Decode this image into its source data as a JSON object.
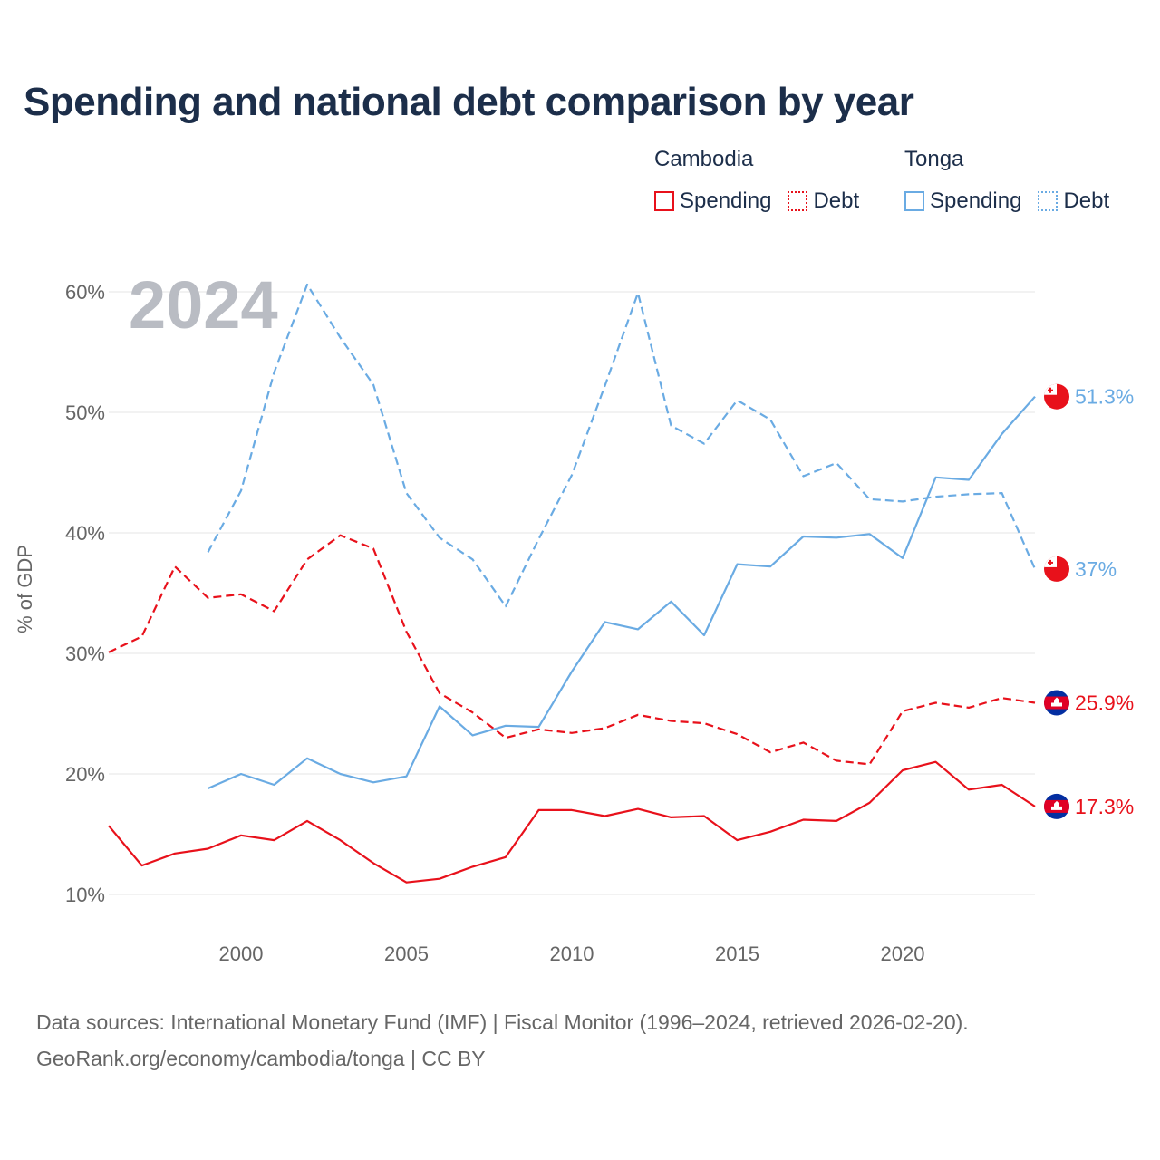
{
  "title": "Spending and national debt comparison by year",
  "legend": {
    "groups": [
      {
        "name": "Cambodia",
        "items": [
          {
            "label": "Spending",
            "style": "solid",
            "color": "#e8111b"
          },
          {
            "label": "Debt",
            "style": "dotted",
            "color": "#e8111b"
          }
        ]
      },
      {
        "name": "Tonga",
        "items": [
          {
            "label": "Spending",
            "style": "solid",
            "color": "#6aabe3"
          },
          {
            "label": "Debt",
            "style": "dotted",
            "color": "#6aabe3"
          }
        ]
      }
    ]
  },
  "colors": {
    "cambodia": "#e8111b",
    "tonga": "#6aabe3",
    "title": "#1c2e4a"
  },
  "year_watermark": "2024",
  "footer": {
    "line1": "Data sources: International Monetary Fund (IMF) | Fiscal Monitor (1996–2024, retrieved 2026-02-20).",
    "line2": "GeoRank.org/economy/cambodia/tonga | CC BY"
  },
  "chart_data": {
    "type": "line",
    "title": "Spending and national debt comparison by year",
    "ylabel": "% of GDP",
    "xlabel": "",
    "xlim": [
      1996,
      2024
    ],
    "ylim": [
      10,
      60
    ],
    "xticks": [
      2000,
      2005,
      2010,
      2015,
      2020
    ],
    "yticks": [
      10,
      20,
      30,
      40,
      50,
      60
    ],
    "ytick_labels": [
      "10%",
      "20%",
      "30%",
      "40%",
      "50%",
      "60%"
    ],
    "grid": true,
    "series": [
      {
        "name": "Cambodia Spending",
        "country": "cambodia",
        "style": "solid",
        "color": "#e8111b",
        "end_label": "17.3%",
        "x": [
          1996,
          1997,
          1998,
          1999,
          2000,
          2001,
          2002,
          2003,
          2004,
          2005,
          2006,
          2007,
          2008,
          2009,
          2010,
          2011,
          2012,
          2013,
          2014,
          2015,
          2016,
          2017,
          2018,
          2019,
          2020,
          2021,
          2022,
          2023,
          2024
        ],
        "values": [
          15.7,
          12.4,
          13.4,
          13.8,
          14.9,
          14.5,
          16.1,
          14.5,
          12.6,
          11.0,
          11.3,
          12.3,
          13.1,
          17.0,
          17.0,
          16.5,
          17.1,
          16.4,
          16.5,
          14.5,
          15.2,
          16.2,
          16.1,
          17.6,
          20.3,
          21.0,
          18.7,
          19.1,
          17.3
        ]
      },
      {
        "name": "Cambodia Debt",
        "country": "cambodia",
        "style": "dashed",
        "color": "#e8111b",
        "end_label": "25.9%",
        "x": [
          1996,
          1997,
          1998,
          1999,
          2000,
          2001,
          2002,
          2003,
          2004,
          2005,
          2006,
          2007,
          2008,
          2009,
          2010,
          2011,
          2012,
          2013,
          2014,
          2015,
          2016,
          2017,
          2018,
          2019,
          2020,
          2021,
          2022,
          2023,
          2024
        ],
        "values": [
          30.1,
          31.4,
          37.2,
          34.6,
          34.9,
          33.5,
          37.8,
          39.8,
          38.7,
          31.8,
          26.7,
          25.1,
          23.0,
          23.7,
          23.4,
          23.8,
          24.9,
          24.4,
          24.2,
          23.3,
          21.8,
          22.6,
          21.1,
          20.8,
          25.2,
          25.9,
          25.5,
          26.3,
          25.9
        ]
      },
      {
        "name": "Tonga Spending",
        "country": "tonga",
        "style": "solid",
        "color": "#6aabe3",
        "end_label": "51.3%",
        "x": [
          1999,
          2000,
          2001,
          2002,
          2003,
          2004,
          2005,
          2006,
          2007,
          2008,
          2009,
          2010,
          2011,
          2012,
          2013,
          2014,
          2015,
          2016,
          2017,
          2018,
          2019,
          2020,
          2021,
          2022,
          2023,
          2024
        ],
        "values": [
          18.8,
          20.0,
          19.1,
          21.3,
          20.0,
          19.3,
          19.8,
          25.6,
          23.2,
          24.0,
          23.9,
          28.5,
          32.6,
          32.0,
          34.3,
          31.5,
          37.4,
          37.2,
          39.7,
          39.6,
          39.9,
          37.9,
          44.6,
          44.4,
          48.2,
          51.3
        ]
      },
      {
        "name": "Tonga Debt",
        "country": "tonga",
        "style": "dashed",
        "color": "#6aabe3",
        "end_label": "37%",
        "x": [
          1999,
          2000,
          2001,
          2002,
          2003,
          2004,
          2005,
          2006,
          2007,
          2008,
          2009,
          2010,
          2011,
          2012,
          2013,
          2014,
          2015,
          2016,
          2017,
          2018,
          2019,
          2020,
          2021,
          2022,
          2023,
          2024
        ],
        "values": [
          38.4,
          43.5,
          53.3,
          60.6,
          56.2,
          52.3,
          43.3,
          39.6,
          37.8,
          33.9,
          39.5,
          44.8,
          52.2,
          59.9,
          48.9,
          47.4,
          51.0,
          49.4,
          44.7,
          45.8,
          42.8,
          42.6,
          43.0,
          43.2,
          43.3,
          37.0
        ]
      }
    ]
  }
}
